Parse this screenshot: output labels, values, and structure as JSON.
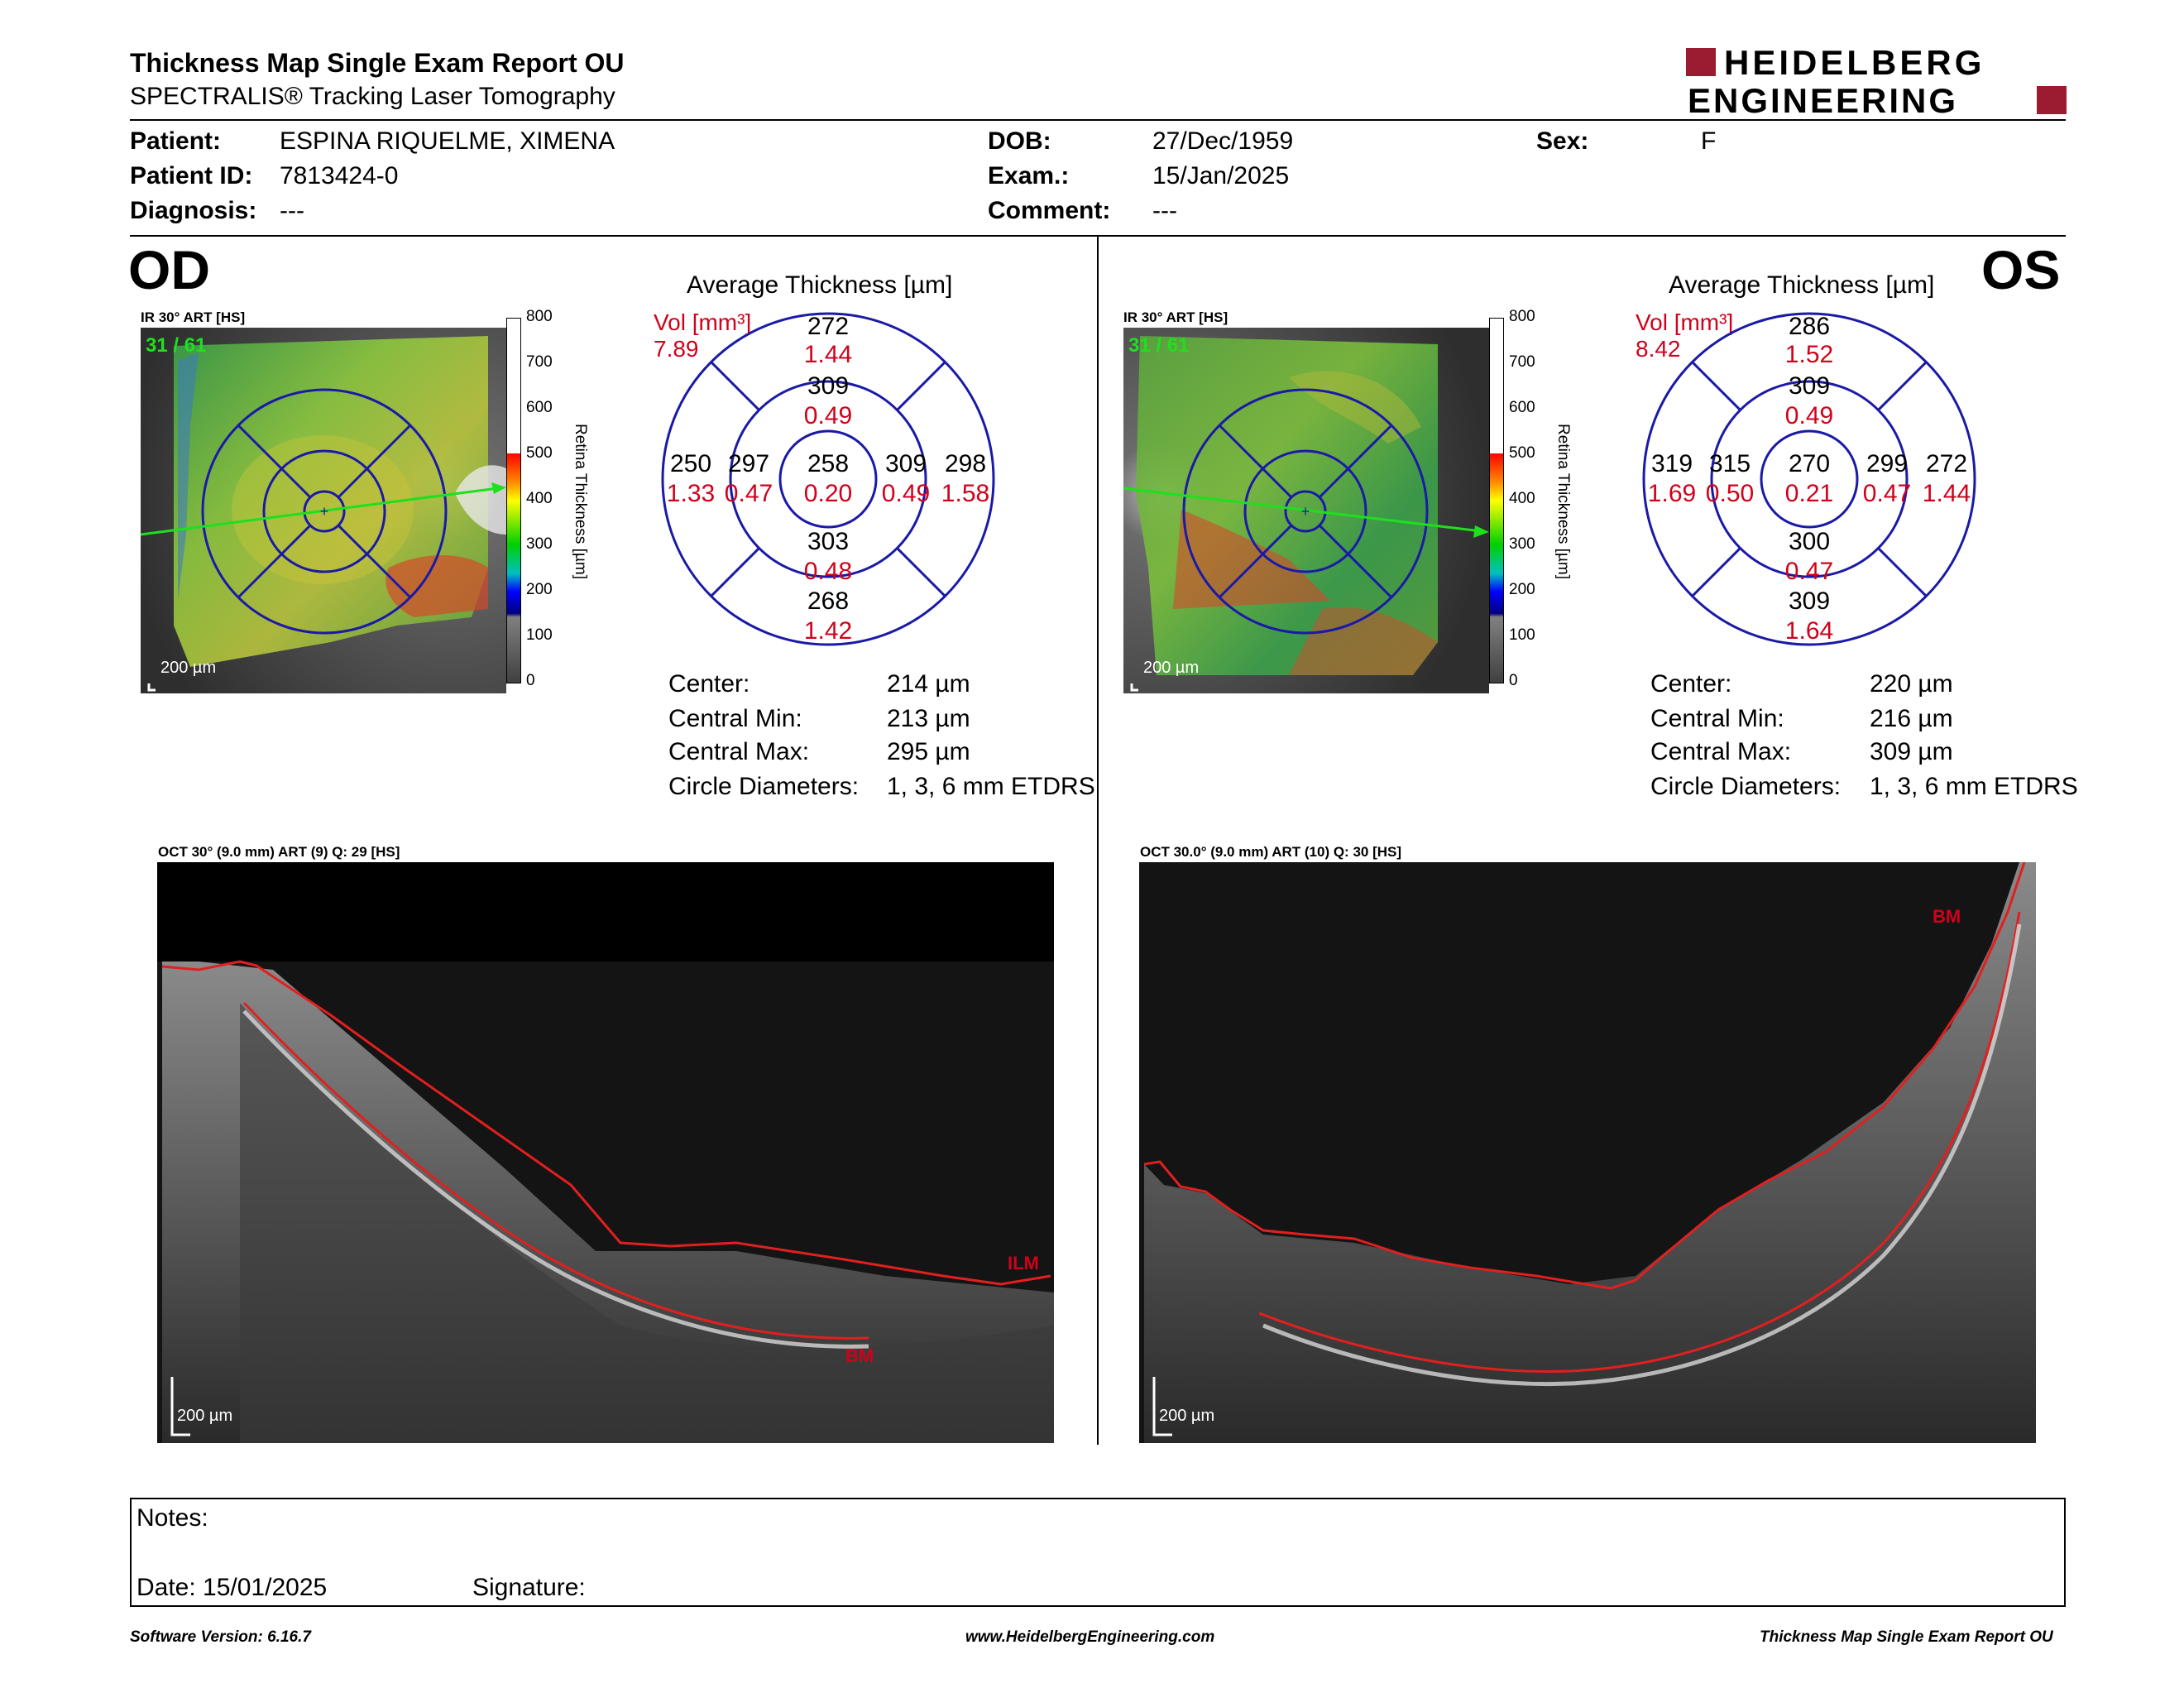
{
  "header": {
    "title": "Thickness Map Single Exam Report OU",
    "subtitle": "SPECTRALIS® Tracking Laser Tomography",
    "logo_line1": "HEIDELBERG",
    "logo_line2": "ENGINEERING"
  },
  "patient": {
    "patient_label": "Patient:",
    "patient_value": "ESPINA RIQUELME, XIMENA",
    "id_label": "Patient ID:",
    "id_value": "7813424-0",
    "diagnosis_label": "Diagnosis:",
    "diagnosis_value": "---",
    "dob_label": "DOB:",
    "dob_value": "27/Dec/1959",
    "exam_label": "Exam.:",
    "exam_value": "15/Jan/2025",
    "comment_label": "Comment:",
    "comment_value": "---",
    "sex_label": "Sex:",
    "sex_value": "F"
  },
  "colors": {
    "grid_blue": "#1a1aa6",
    "value_red": "#d0021b",
    "scan_green": "#1ee01e",
    "logo_red": "#9b1b30"
  },
  "scale": {
    "ticks": [
      "800",
      "700",
      "600",
      "500",
      "400",
      "300",
      "200",
      "100",
      "0"
    ],
    "label": "Retina  Thickness [µm]"
  },
  "od": {
    "eye_label": "OD",
    "ir_label": "IR 30° ART [HS]",
    "frame": "31 / 61",
    "scalebar": "200 µm",
    "avg_title": "Average Thickness [µm]",
    "vol_label": "Vol [mm³]",
    "vol_value": "7.89",
    "etdrs": {
      "outer_top": [
        "272",
        "1.44"
      ],
      "inner_top": [
        "309",
        "0.49"
      ],
      "outer_left": [
        "250",
        "1.33"
      ],
      "inner_left": [
        "297",
        "0.47"
      ],
      "center": [
        "258",
        "0.20"
      ],
      "inner_right": [
        "309",
        "0.49"
      ],
      "outer_right": [
        "298",
        "1.58"
      ],
      "inner_bottom": [
        "303",
        "0.48"
      ],
      "outer_bottom": [
        "268",
        "1.42"
      ]
    },
    "stats": [
      {
        "label": "Center:",
        "value": "214 µm"
      },
      {
        "label": "Central Min:",
        "value": "213 µm"
      },
      {
        "label": "Central Max:",
        "value": "295 µm"
      },
      {
        "label": "Circle Diameters:",
        "value": "1, 3, 6 mm ETDRS"
      }
    ],
    "oct_label": "OCT 30° (9.0 mm) ART (9) Q: 29 [HS]",
    "oct_scalebar": "200 µm",
    "ilm_label": "ILM",
    "bm_label": "BM"
  },
  "os": {
    "eye_label": "OS",
    "ir_label": "IR 30° ART [HS]",
    "frame": "31 / 61",
    "scalebar": "200 µm",
    "avg_title": "Average Thickness [µm]",
    "vol_label": "Vol [mm³]",
    "vol_value": "8.42",
    "etdrs": {
      "outer_top": [
        "286",
        "1.52"
      ],
      "inner_top": [
        "309",
        "0.49"
      ],
      "outer_left": [
        "319",
        "1.69"
      ],
      "inner_left": [
        "315",
        "0.50"
      ],
      "center": [
        "270",
        "0.21"
      ],
      "inner_right": [
        "299",
        "0.47"
      ],
      "outer_right": [
        "272",
        "1.44"
      ],
      "inner_bottom": [
        "300",
        "0.47"
      ],
      "outer_bottom": [
        "309",
        "1.64"
      ]
    },
    "stats": [
      {
        "label": "Center:",
        "value": "220 µm"
      },
      {
        "label": "Central Min:",
        "value": "216 µm"
      },
      {
        "label": "Central Max:",
        "value": "309 µm"
      },
      {
        "label": "Circle Diameters:",
        "value": "1, 3, 6 mm ETDRS"
      }
    ],
    "oct_label": "OCT 30.0° (9.0 mm) ART (10) Q: 30 [HS]",
    "oct_scalebar": "200 µm",
    "bm_label": "BM"
  },
  "notes": {
    "notes_label": "Notes:",
    "date_label": "Date: 15/01/2025",
    "signature_label": "Signature:"
  },
  "footer": {
    "left": "Software Version: 6.16.7",
    "center": "www.HeidelbergEngineering.com",
    "right": "Thickness Map Single Exam Report OU"
  }
}
